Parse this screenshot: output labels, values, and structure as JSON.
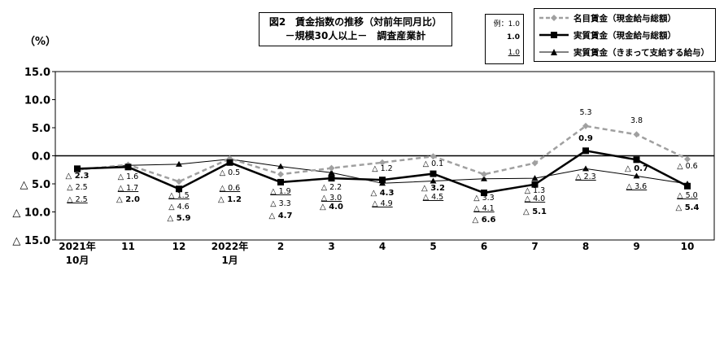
{
  "title": {
    "line1": "図2　賃金指数の推移（対前年同月比）",
    "line2": "－規模30人以上－　調査産業計"
  },
  "unit_label": "（%）",
  "example_box": {
    "prefix": "例：",
    "nominal": "1.0",
    "real": "1.0",
    "fixed": "1.0"
  },
  "colors": {
    "nominal": "#a0a0a0",
    "real": "#000000",
    "fixed": "#000000"
  },
  "chart_data": {
    "type": "line",
    "categories": [
      "2021年\n10月",
      "11",
      "12",
      "2022年\n1月",
      "2",
      "3",
      "4",
      "5",
      "6",
      "7",
      "8",
      "9",
      "10"
    ],
    "ylim": [
      -15,
      15
    ],
    "yticks": [
      15,
      10,
      5,
      0,
      -5,
      -10,
      -15
    ],
    "ytick_labels": [
      "15.0",
      "10.0",
      "5.0",
      "0.0",
      "△ 5.0",
      "△ 10.0",
      "△ 15.0"
    ],
    "series": [
      {
        "name": "名目賃金（現金給与総額）",
        "values": [
          -2.5,
          -1.6,
          -4.6,
          -0.5,
          -3.3,
          -2.2,
          -1.2,
          -0.1,
          -3.3,
          -1.3,
          5.3,
          3.8,
          -0.6
        ],
        "labels": [
          "△ 2.5",
          "△ 1.6",
          "△ 4.6",
          "△ 0.5",
          "△ 3.3",
          "△ 2.2",
          "△ 1.2",
          "△ 0.1",
          "△ 3.3",
          "△ 1.3",
          "5.3",
          "3.8",
          "△ 0.6"
        ],
        "style": "dashed-diamond"
      },
      {
        "name": "実質賃金（現金給与総額）",
        "values": [
          -2.3,
          -2.0,
          -5.9,
          -1.2,
          -4.7,
          -4.0,
          -4.3,
          -3.2,
          -6.6,
          -5.1,
          0.9,
          -0.7,
          -5.4
        ],
        "labels": [
          "△ 2.3",
          "△ 2.0",
          "△ 5.9",
          "△ 1.2",
          "△ 4.7",
          "△ 4.0",
          "△ 4.3",
          "△ 3.2",
          "△ 6.6",
          "△ 5.1",
          "0.9",
          "△ 0.7",
          "△ 5.4"
        ],
        "style": "bold-square"
      },
      {
        "name": "実質賃金（きまって支給する給与）",
        "values": [
          -2.5,
          -1.7,
          -1.5,
          -0.6,
          -1.9,
          -3.0,
          -4.9,
          -4.5,
          -4.1,
          -4.0,
          -2.3,
          -3.6,
          -5.0
        ],
        "labels": [
          "△ 2.5",
          "△ 1.7",
          "△ 1.5",
          "△ 0.6",
          "△ 1.9",
          "△ 3.0",
          "△ 4.9",
          "△ 4.5",
          "△ 4.1",
          "△ 4.0",
          "△ 2.3",
          "△ 3.6",
          "△ 5.0"
        ],
        "style": "thin-triangle"
      }
    ]
  }
}
